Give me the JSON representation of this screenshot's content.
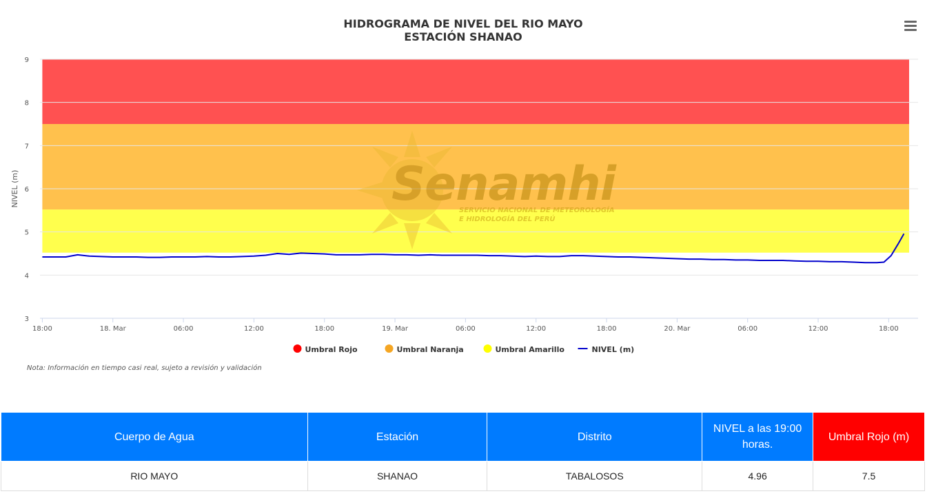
{
  "chart_data": {
    "type": "line",
    "title": "HIDROGRAMA DE NIVEL DEL RIO MAYO",
    "subtitle": "ESTACIÓN SHANAO",
    "ylabel": "NIVEL (m)",
    "xlabel": "",
    "ylim": [
      3,
      9
    ],
    "y_ticks": [
      "3",
      "4",
      "5",
      "6",
      "7",
      "8",
      "9"
    ],
    "x_range_hours": [
      -0.2,
      74.5
    ],
    "x_ticks": [
      {
        "label": "18:00",
        "hour": 0
      },
      {
        "label": "18. Mar",
        "hour": 6
      },
      {
        "label": "06:00",
        "hour": 12
      },
      {
        "label": "12:00",
        "hour": 18
      },
      {
        "label": "18:00",
        "hour": 24
      },
      {
        "label": "19. Mar",
        "hour": 30
      },
      {
        "label": "06:00",
        "hour": 36
      },
      {
        "label": "12:00",
        "hour": 42
      },
      {
        "label": "18:00",
        "hour": 48
      },
      {
        "label": "20. Mar",
        "hour": 54
      },
      {
        "label": "06:00",
        "hour": 60
      },
      {
        "label": "12:00",
        "hour": 66
      },
      {
        "label": "18:00",
        "hour": 72
      }
    ],
    "bands": [
      {
        "name": "Umbral Amarillo",
        "from": 4.52,
        "to": 5.52,
        "color": "#ffff4d"
      },
      {
        "name": "Umbral Naranja",
        "from": 5.52,
        "to": 7.5,
        "color": "#ffc14d"
      },
      {
        "name": "Umbral Rojo",
        "from": 7.5,
        "to": 9.0,
        "color": "#ff5151"
      }
    ],
    "band_x_range": [
      0,
      77
    ],
    "series": [
      {
        "name": "NIVEL (m)",
        "color": "#0000cc",
        "x": [
          0,
          1,
          2,
          3,
          4,
          5,
          6,
          7,
          8,
          9,
          10,
          11,
          12,
          13,
          14,
          15,
          16,
          17,
          18,
          19,
          20,
          21,
          22,
          23,
          24,
          25,
          26,
          27,
          28,
          29,
          30,
          31,
          32,
          33,
          34,
          35,
          36,
          37,
          38,
          39,
          40,
          41,
          42,
          43,
          44,
          45,
          46,
          47,
          48,
          49,
          50,
          51,
          52,
          53,
          54,
          55,
          56,
          57,
          58,
          59,
          60,
          61,
          62,
          63,
          64,
          65,
          66,
          67,
          68,
          69,
          70,
          71,
          71.6,
          72.2,
          72.8,
          73.3
        ],
        "values": [
          4.42,
          4.42,
          4.42,
          4.47,
          4.44,
          4.43,
          4.42,
          4.42,
          4.42,
          4.41,
          4.41,
          4.42,
          4.42,
          4.42,
          4.43,
          4.42,
          4.42,
          4.43,
          4.44,
          4.46,
          4.5,
          4.48,
          4.51,
          4.5,
          4.49,
          4.47,
          4.47,
          4.47,
          4.48,
          4.48,
          4.47,
          4.47,
          4.46,
          4.47,
          4.46,
          4.46,
          4.46,
          4.46,
          4.45,
          4.45,
          4.44,
          4.43,
          4.44,
          4.43,
          4.43,
          4.45,
          4.45,
          4.44,
          4.43,
          4.42,
          4.42,
          4.41,
          4.4,
          4.39,
          4.38,
          4.37,
          4.37,
          4.36,
          4.36,
          4.35,
          4.35,
          4.34,
          4.34,
          4.34,
          4.33,
          4.32,
          4.32,
          4.31,
          4.31,
          4.3,
          4.29,
          4.29,
          4.3,
          4.45,
          4.72,
          4.96
        ]
      }
    ],
    "legend": [
      {
        "label": "Umbral Rojo",
        "color": "#ff0000",
        "symbol": "dot"
      },
      {
        "label": "Umbral Naranja",
        "color": "#f5a623",
        "symbol": "dot"
      },
      {
        "label": "Umbral Amarillo",
        "color": "#ffff00",
        "symbol": "dot"
      },
      {
        "label": "NIVEL (m)",
        "color": "#0000cc",
        "symbol": "line"
      }
    ],
    "legend_placement": "bottom-center",
    "grid": true
  },
  "watermark": {
    "brand": "Senamhi",
    "line1": "SERVICIO NACIONAL DE METEOROLOGÍA",
    "line2": "E HIDROLOGÍA DEL PERÚ"
  },
  "menu": {
    "icon": "hamburger-icon"
  },
  "note": "Nota: Información en tiempo casi real, sujeto a revisión y validación",
  "table": {
    "headers": [
      "Cuerpo de Agua",
      "Estación",
      "Distrito",
      "NIVEL a las 19:00 horas.",
      "Umbral Rojo (m)"
    ],
    "row": [
      "RIO MAYO",
      "SHANAO",
      "TABALOSOS",
      "4.96",
      "7.5"
    ]
  },
  "colors": {
    "header_blue": "#007bff",
    "header_red": "#ff0000"
  }
}
